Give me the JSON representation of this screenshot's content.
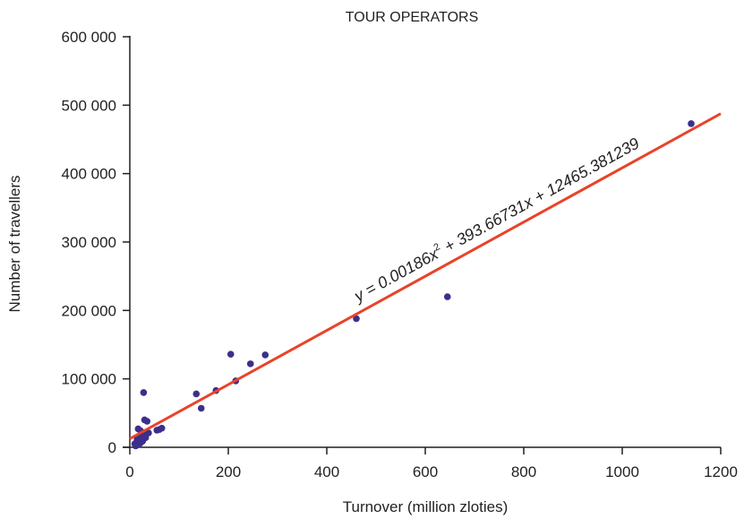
{
  "chart_data": {
    "type": "scatter",
    "title": "TOUR OPERATORS",
    "xlabel": "Turnover (million zloties)",
    "ylabel": "Number of travellers",
    "xlim": [
      0,
      1200
    ],
    "ylim": [
      0,
      600000
    ],
    "x_ticks": [
      0,
      200,
      400,
      600,
      800,
      1000,
      1200
    ],
    "x_tick_labels": [
      "0",
      "200",
      "400",
      "600",
      "800",
      "1000",
      "1200"
    ],
    "y_ticks": [
      0,
      100000,
      200000,
      300000,
      400000,
      500000,
      600000
    ],
    "y_tick_labels": [
      "0",
      "100 000",
      "200 000",
      "300 000",
      "400 000",
      "500 000",
      "600 000"
    ],
    "grid": false,
    "point_color": "#3b2f8c",
    "trendline_color": "#e8432a",
    "series": [
      {
        "points": [
          [
            10,
            5000
          ],
          [
            12,
            2000
          ],
          [
            14,
            8000
          ],
          [
            15,
            12000
          ],
          [
            17,
            27000
          ],
          [
            18,
            4000
          ],
          [
            20,
            15000
          ],
          [
            21,
            6000
          ],
          [
            22,
            24000
          ],
          [
            24,
            10000
          ],
          [
            25,
            18000
          ],
          [
            26,
            9000
          ],
          [
            28,
            80000
          ],
          [
            30,
            40000
          ],
          [
            32,
            14000
          ],
          [
            34,
            20000
          ],
          [
            35,
            38000
          ],
          [
            38,
            21000
          ],
          [
            55,
            25000
          ],
          [
            60,
            26000
          ],
          [
            65,
            28000
          ],
          [
            135,
            78000
          ],
          [
            145,
            57000
          ],
          [
            175,
            83000
          ],
          [
            205,
            136000
          ],
          [
            215,
            97000
          ],
          [
            245,
            122000
          ],
          [
            275,
            135000
          ],
          [
            460,
            188000
          ],
          [
            645,
            220000
          ],
          [
            1140,
            473000
          ]
        ]
      }
    ],
    "trendline": {
      "equation": "y = 0.00186x² + 393.66731x + 12465.381239",
      "equation_prefix": "y = 0.00186x",
      "equation_sup": "2",
      "equation_suffix": " + 393.66731x + 12465.381239",
      "a": 0.00186,
      "b": 393.66731,
      "c": 12465.381239,
      "x_range": [
        0,
        1200
      ]
    }
  }
}
